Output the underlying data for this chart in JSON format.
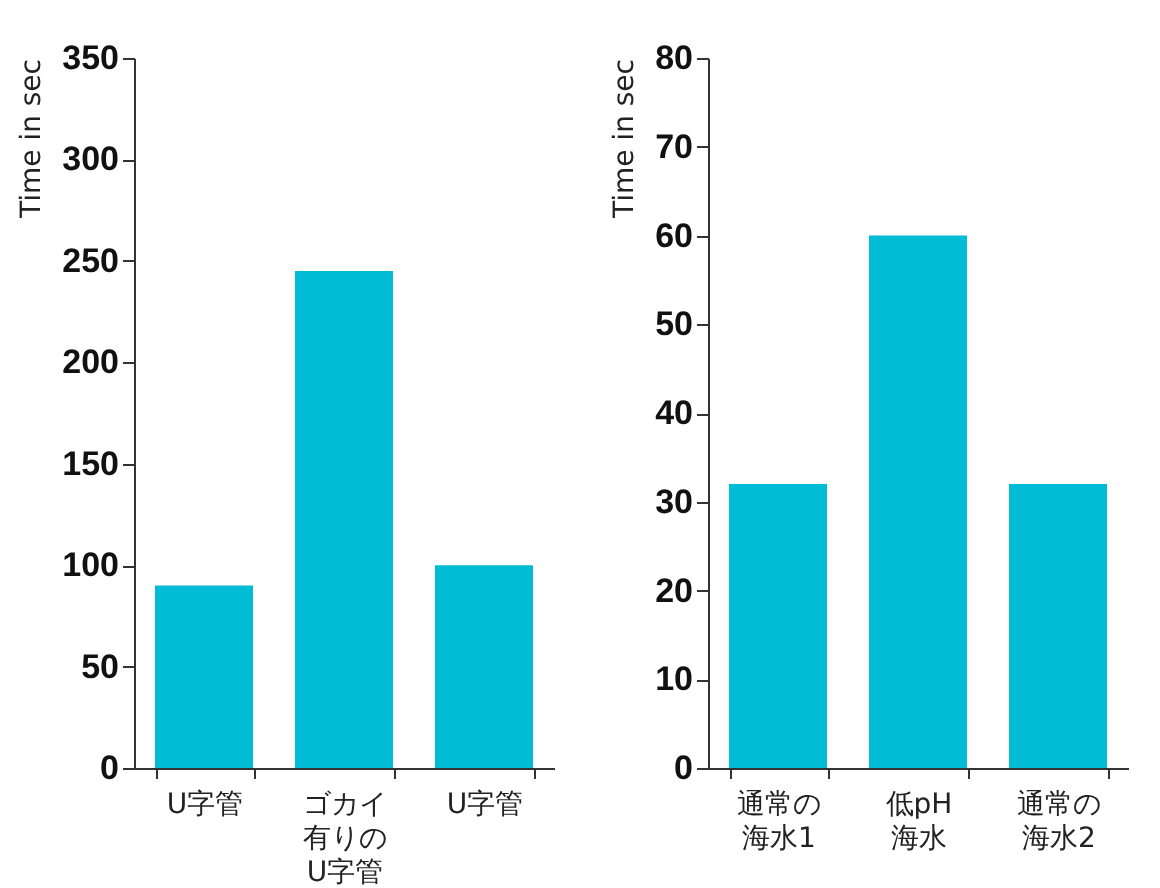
{
  "chart_data": [
    {
      "type": "bar",
      "ylabel": "Time in sec",
      "categories": [
        "U字管",
        "ゴカイ有りのU字管",
        "U字管"
      ],
      "values": [
        90,
        245,
        100
      ],
      "color": "#00bcd4",
      "ylim": [
        0,
        350
      ],
      "yticks": [
        0,
        50,
        100,
        150,
        200,
        250,
        300,
        350
      ],
      "grid": false
    },
    {
      "type": "bar",
      "ylabel": "Time in sec",
      "categories": [
        "通常の海水1",
        "低pH海水",
        "通常の海水2"
      ],
      "values": [
        32,
        60,
        32
      ],
      "color": "#00bcd4",
      "ylim": [
        0,
        80
      ],
      "yticks": [
        0,
        10,
        20,
        30,
        40,
        50,
        60,
        70,
        80
      ],
      "grid": false
    }
  ]
}
